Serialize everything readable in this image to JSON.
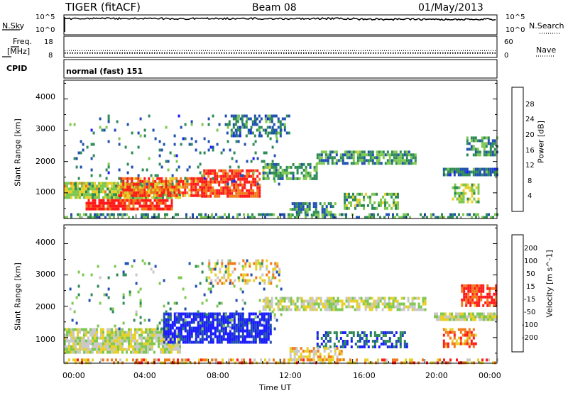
{
  "header": {
    "radar": "TIGER (fitACF)",
    "beam": "Beam 08",
    "date": "01/May/2013"
  },
  "nsky_panel": {
    "left_label": "N.Sky",
    "right_label": "N.Search",
    "left_ticks": [
      "10^5",
      "10^0"
    ],
    "right_ticks": [
      "10^5",
      "10^0"
    ]
  },
  "freq_panel": {
    "left_label_1": "Freq.",
    "left_label_2": "[MHz]",
    "right_label": "Nave",
    "left_ticks": [
      "18",
      "8"
    ],
    "right_ticks": [
      "60",
      "0"
    ],
    "freq_value": 10,
    "nave_value": 20
  },
  "cpid_panel": {
    "label": "CPID",
    "mode_text": "normal (fast) 151"
  },
  "chart_data": [
    {
      "type": "heatmap",
      "name": "power",
      "ylabel": "Slant Range [km]",
      "xlabel": "Time UT",
      "x_ticks": [
        "00:00",
        "04:00",
        "08:00",
        "12:00",
        "16:00",
        "20:00",
        "00:00"
      ],
      "y_ticks": [
        "1000",
        "2000",
        "3000",
        "4000"
      ],
      "ylim": [
        180,
        4600
      ],
      "xlim_hours": [
        0,
        24
      ],
      "colorbar": {
        "label": "Power [dB]",
        "ticks": [
          "4",
          "8",
          "12",
          "16",
          "20",
          "24",
          "28"
        ],
        "colors": [
          "#1a1aff",
          "#1f4fb0",
          "#2e8b57",
          "#7ec850",
          "#e8d02a",
          "#f07a1a",
          "#ff1a1a"
        ]
      },
      "regions": [
        {
          "t0": 0.0,
          "t1": 6.4,
          "r0": 850,
          "r1": 1350,
          "level": 0.55,
          "density": 0.9
        },
        {
          "t0": 1.2,
          "t1": 6.0,
          "r0": 500,
          "r1": 800,
          "level": 0.95,
          "density": 0.85
        },
        {
          "t0": 3.0,
          "t1": 7.8,
          "r0": 900,
          "r1": 1500,
          "level": 0.85,
          "density": 0.8
        },
        {
          "t0": 7.6,
          "t1": 10.8,
          "r0": 850,
          "r1": 1750,
          "level": 0.9,
          "density": 0.8
        },
        {
          "t0": 0.0,
          "t1": 24.0,
          "r0": 200,
          "r1": 350,
          "level": 0.35,
          "density": 0.5
        },
        {
          "t0": 0.3,
          "t1": 12.0,
          "r0": 1300,
          "r1": 3500,
          "level": 0.3,
          "density": 0.07
        },
        {
          "t0": 9.0,
          "t1": 12.5,
          "r0": 2800,
          "r1": 3500,
          "level": 0.3,
          "density": 0.4
        },
        {
          "t0": 11.0,
          "t1": 14.0,
          "r0": 1450,
          "r1": 1950,
          "level": 0.4,
          "density": 0.7
        },
        {
          "t0": 14.0,
          "t1": 19.5,
          "r0": 1950,
          "r1": 2350,
          "level": 0.4,
          "density": 0.75
        },
        {
          "t0": 15.5,
          "t1": 18.5,
          "r0": 500,
          "r1": 1000,
          "level": 0.45,
          "density": 0.55
        },
        {
          "t0": 12.5,
          "t1": 15.0,
          "r0": 300,
          "r1": 700,
          "level": 0.35,
          "density": 0.6
        },
        {
          "t0": 21.0,
          "t1": 24.0,
          "r0": 1550,
          "r1": 1800,
          "level": 0.3,
          "density": 0.85
        },
        {
          "t0": 21.5,
          "t1": 23.0,
          "r0": 700,
          "r1": 1300,
          "level": 0.55,
          "density": 0.6
        },
        {
          "t0": 22.3,
          "t1": 24.0,
          "r0": 2200,
          "r1": 2800,
          "level": 0.4,
          "density": 0.6
        }
      ]
    },
    {
      "type": "heatmap",
      "name": "velocity",
      "ylabel": "Slant Range [km]",
      "xlabel": "Time UT",
      "x_ticks": [
        "00:00",
        "04:00",
        "08:00",
        "12:00",
        "16:00",
        "20:00",
        "00:00"
      ],
      "y_ticks": [
        "1000",
        "2000",
        "3000",
        "4000"
      ],
      "ylim": [
        180,
        4600
      ],
      "xlim_hours": [
        0,
        24
      ],
      "colorbar": {
        "label": "Velocity [m s^-1]",
        "ticks": [
          "200",
          "100",
          "50",
          "15",
          "-15",
          "-50",
          "-100",
          "-200"
        ],
        "colors": [
          "#1a1aff",
          "#1f4fb0",
          "#2e8b57",
          "#7ec850",
          "#c8c8c8",
          "#e8d02a",
          "#f07a1a",
          "#ff1a1a"
        ]
      },
      "regions": [
        {
          "t0": 0.0,
          "t1": 6.4,
          "r0": 500,
          "r1": 1300,
          "level": 0.55,
          "density": 0.85
        },
        {
          "t0": 5.5,
          "t1": 11.5,
          "r0": 850,
          "r1": 1800,
          "level": 0.05,
          "density": 0.8
        },
        {
          "t0": 8.0,
          "t1": 12.0,
          "r0": 2700,
          "r1": 3500,
          "level": 0.7,
          "density": 0.35
        },
        {
          "t0": 0.3,
          "t1": 12.0,
          "r0": 1300,
          "r1": 3500,
          "level": 0.35,
          "density": 0.06
        },
        {
          "t0": 11.0,
          "t1": 20.0,
          "r0": 1900,
          "r1": 2300,
          "level": 0.55,
          "density": 0.7
        },
        {
          "t0": 14.0,
          "t1": 19.0,
          "r0": 700,
          "r1": 1200,
          "level": 0.2,
          "density": 0.5
        },
        {
          "t0": 12.5,
          "t1": 15.5,
          "r0": 300,
          "r1": 700,
          "level": 0.7,
          "density": 0.6
        },
        {
          "t0": 0.0,
          "t1": 24.0,
          "r0": 200,
          "r1": 330,
          "level": 0.75,
          "density": 0.5
        },
        {
          "t0": 20.5,
          "t1": 24.0,
          "r0": 1600,
          "r1": 1800,
          "level": 0.55,
          "density": 0.85
        },
        {
          "t0": 22.0,
          "t1": 24.0,
          "r0": 2000,
          "r1": 2700,
          "level": 0.92,
          "density": 0.7
        },
        {
          "t0": 21.0,
          "t1": 22.8,
          "r0": 700,
          "r1": 1300,
          "level": 0.85,
          "density": 0.6
        }
      ]
    }
  ]
}
